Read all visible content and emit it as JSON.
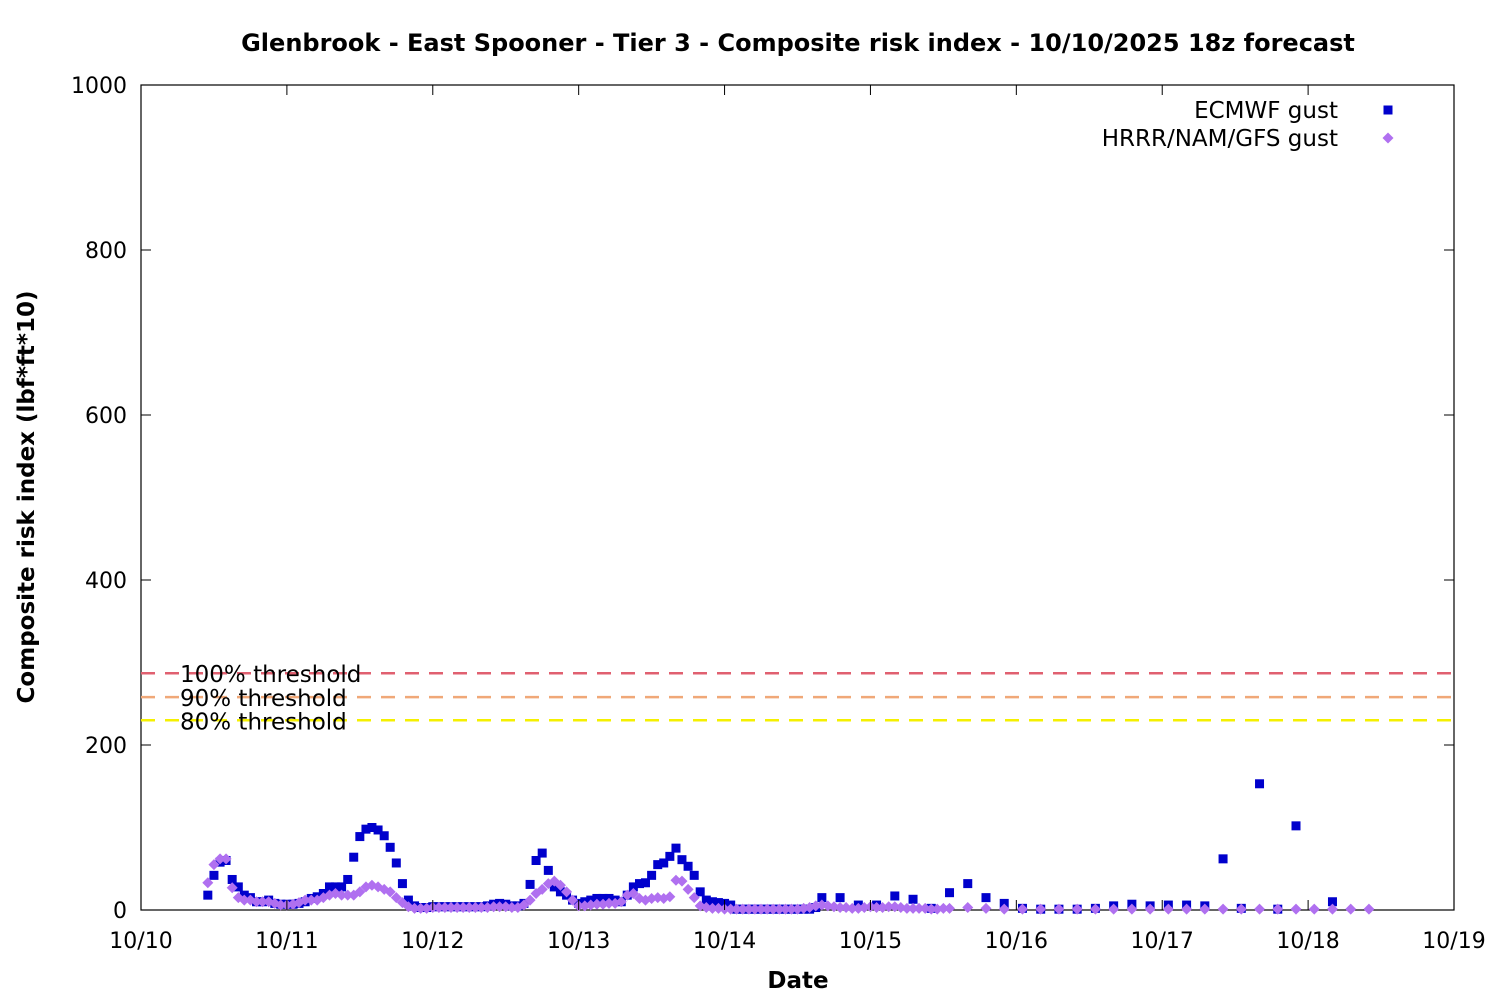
{
  "chart_data": {
    "type": "scatter",
    "title": "Glenbrook - East Spooner - Tier 3 - Composite risk index - 10/10/2025 18z forecast",
    "xlabel": "Date",
    "ylabel": "Composite risk index (lbf*ft*10)",
    "x_unit": "days",
    "xlim": [
      0,
      9
    ],
    "ylim": [
      0,
      1000
    ],
    "x_ticks": [
      {
        "x": 0,
        "label": "10/10"
      },
      {
        "x": 1,
        "label": "10/11"
      },
      {
        "x": 2,
        "label": "10/12"
      },
      {
        "x": 3,
        "label": "10/13"
      },
      {
        "x": 4,
        "label": "10/14"
      },
      {
        "x": 5,
        "label": "10/15"
      },
      {
        "x": 6,
        "label": "10/16"
      },
      {
        "x": 7,
        "label": "10/17"
      },
      {
        "x": 8,
        "label": "10/18"
      },
      {
        "x": 9,
        "label": "10/19"
      }
    ],
    "y_ticks": [
      {
        "y": 0,
        "label": "0"
      },
      {
        "y": 200,
        "label": "200"
      },
      {
        "y": 400,
        "label": "400"
      },
      {
        "y": 600,
        "label": "600"
      },
      {
        "y": 800,
        "label": "800"
      },
      {
        "y": 1000,
        "label": "1000"
      }
    ],
    "legend_position": "top-right",
    "grid": false,
    "thresholds": [
      {
        "name": "100% threshold",
        "value": 287,
        "color": "#e06070"
      },
      {
        "name": "90% threshold",
        "value": 258,
        "color": "#f0a878"
      },
      {
        "name": "80% threshold",
        "value": 230,
        "color": "#f5f000"
      }
    ],
    "series": [
      {
        "name": "ECMWF gust",
        "color": "#0000cc",
        "marker": "square",
        "points": [
          [
            0.458,
            18
          ],
          [
            0.5,
            42
          ],
          [
            0.542,
            58
          ],
          [
            0.583,
            60
          ],
          [
            0.625,
            37
          ],
          [
            0.667,
            28
          ],
          [
            0.708,
            18
          ],
          [
            0.75,
            15
          ],
          [
            0.792,
            10
          ],
          [
            0.833,
            10
          ],
          [
            0.875,
            12
          ],
          [
            0.917,
            8
          ],
          [
            0.958,
            7
          ],
          [
            1.0,
            7
          ],
          [
            1.042,
            7
          ],
          [
            1.083,
            8
          ],
          [
            1.125,
            10
          ],
          [
            1.167,
            14
          ],
          [
            1.208,
            16
          ],
          [
            1.25,
            20
          ],
          [
            1.292,
            28
          ],
          [
            1.333,
            28
          ],
          [
            1.375,
            28
          ],
          [
            1.417,
            37
          ],
          [
            1.458,
            64
          ],
          [
            1.5,
            89
          ],
          [
            1.542,
            98
          ],
          [
            1.583,
            100
          ],
          [
            1.625,
            97
          ],
          [
            1.667,
            90
          ],
          [
            1.708,
            76
          ],
          [
            1.75,
            57
          ],
          [
            1.792,
            32
          ],
          [
            1.833,
            12
          ],
          [
            1.875,
            5
          ],
          [
            1.917,
            3
          ],
          [
            1.958,
            3
          ],
          [
            2.0,
            4
          ],
          [
            2.042,
            4
          ],
          [
            2.083,
            4
          ],
          [
            2.125,
            4
          ],
          [
            2.167,
            4
          ],
          [
            2.208,
            4
          ],
          [
            2.25,
            4
          ],
          [
            2.292,
            4
          ],
          [
            2.333,
            4
          ],
          [
            2.375,
            5
          ],
          [
            2.417,
            7
          ],
          [
            2.458,
            8
          ],
          [
            2.5,
            7
          ],
          [
            2.542,
            5
          ],
          [
            2.583,
            5
          ],
          [
            2.625,
            8
          ],
          [
            2.667,
            31
          ],
          [
            2.708,
            60
          ],
          [
            2.75,
            69
          ],
          [
            2.792,
            48
          ],
          [
            2.833,
            28
          ],
          [
            2.875,
            22
          ],
          [
            2.917,
            18
          ],
          [
            2.958,
            12
          ],
          [
            3.0,
            8
          ],
          [
            3.042,
            10
          ],
          [
            3.083,
            12
          ],
          [
            3.125,
            14
          ],
          [
            3.167,
            14
          ],
          [
            3.208,
            14
          ],
          [
            3.25,
            12
          ],
          [
            3.292,
            10
          ],
          [
            3.333,
            18
          ],
          [
            3.375,
            28
          ],
          [
            3.417,
            32
          ],
          [
            3.458,
            33
          ],
          [
            3.5,
            42
          ],
          [
            3.542,
            55
          ],
          [
            3.583,
            57
          ],
          [
            3.625,
            65
          ],
          [
            3.667,
            75
          ],
          [
            3.708,
            61
          ],
          [
            3.75,
            53
          ],
          [
            3.792,
            42
          ],
          [
            3.833,
            22
          ],
          [
            3.875,
            12
          ],
          [
            3.917,
            10
          ],
          [
            3.958,
            9
          ],
          [
            4.0,
            8
          ],
          [
            4.042,
            6
          ],
          [
            4.083,
            1
          ],
          [
            4.125,
            1
          ],
          [
            4.167,
            1
          ],
          [
            4.208,
            1
          ],
          [
            4.25,
            1
          ],
          [
            4.292,
            1
          ],
          [
            4.333,
            1
          ],
          [
            4.375,
            1
          ],
          [
            4.417,
            1
          ],
          [
            4.458,
            1
          ],
          [
            4.5,
            1
          ],
          [
            4.542,
            1
          ],
          [
            4.583,
            1
          ],
          [
            4.625,
            3
          ],
          [
            4.667,
            15
          ],
          [
            4.792,
            15
          ],
          [
            4.917,
            6
          ],
          [
            5.042,
            6
          ],
          [
            5.167,
            17
          ],
          [
            5.292,
            13
          ],
          [
            5.417,
            2
          ],
          [
            5.542,
            21
          ],
          [
            5.667,
            32
          ],
          [
            5.792,
            15
          ],
          [
            5.917,
            8
          ],
          [
            6.042,
            2
          ],
          [
            6.167,
            1
          ],
          [
            6.292,
            1
          ],
          [
            6.417,
            1
          ],
          [
            6.542,
            2
          ],
          [
            6.667,
            5
          ],
          [
            6.792,
            7
          ],
          [
            6.917,
            5
          ],
          [
            7.042,
            6
          ],
          [
            7.167,
            6
          ],
          [
            7.292,
            5
          ],
          [
            7.417,
            62
          ],
          [
            7.542,
            2
          ],
          [
            7.667,
            153
          ],
          [
            7.792,
            1
          ],
          [
            7.917,
            102
          ],
          [
            8.167,
            10
          ]
        ]
      },
      {
        "name": "HRRR/NAM/GFS gust",
        "color": "#b070f0",
        "marker": "diamond",
        "points": [
          [
            0.458,
            33
          ],
          [
            0.5,
            55
          ],
          [
            0.542,
            62
          ],
          [
            0.583,
            62
          ],
          [
            0.625,
            27
          ],
          [
            0.667,
            15
          ],
          [
            0.708,
            12
          ],
          [
            0.75,
            12
          ],
          [
            0.792,
            10
          ],
          [
            0.833,
            10
          ],
          [
            0.875,
            10
          ],
          [
            0.917,
            8
          ],
          [
            0.958,
            6
          ],
          [
            1.0,
            6
          ],
          [
            1.042,
            7
          ],
          [
            1.083,
            9
          ],
          [
            1.125,
            12
          ],
          [
            1.167,
            12
          ],
          [
            1.208,
            12
          ],
          [
            1.25,
            15
          ],
          [
            1.292,
            18
          ],
          [
            1.333,
            20
          ],
          [
            1.375,
            18
          ],
          [
            1.417,
            18
          ],
          [
            1.458,
            18
          ],
          [
            1.5,
            22
          ],
          [
            1.542,
            28
          ],
          [
            1.583,
            30
          ],
          [
            1.625,
            28
          ],
          [
            1.667,
            25
          ],
          [
            1.708,
            22
          ],
          [
            1.75,
            15
          ],
          [
            1.792,
            9
          ],
          [
            1.833,
            4
          ],
          [
            1.875,
            2
          ],
          [
            1.917,
            2
          ],
          [
            1.958,
            2
          ],
          [
            2.0,
            3
          ],
          [
            2.042,
            3
          ],
          [
            2.083,
            3
          ],
          [
            2.125,
            3
          ],
          [
            2.167,
            3
          ],
          [
            2.208,
            3
          ],
          [
            2.25,
            3
          ],
          [
            2.292,
            3
          ],
          [
            2.333,
            3
          ],
          [
            2.375,
            3
          ],
          [
            2.417,
            4
          ],
          [
            2.458,
            4
          ],
          [
            2.5,
            4
          ],
          [
            2.542,
            3
          ],
          [
            2.583,
            3
          ],
          [
            2.625,
            6
          ],
          [
            2.667,
            12
          ],
          [
            2.708,
            20
          ],
          [
            2.75,
            25
          ],
          [
            2.792,
            32
          ],
          [
            2.833,
            35
          ],
          [
            2.875,
            30
          ],
          [
            2.917,
            22
          ],
          [
            2.958,
            12
          ],
          [
            3.0,
            5
          ],
          [
            3.042,
            5
          ],
          [
            3.083,
            6
          ],
          [
            3.125,
            7
          ],
          [
            3.167,
            7
          ],
          [
            3.208,
            8
          ],
          [
            3.25,
            8
          ],
          [
            3.292,
            10
          ],
          [
            3.333,
            18
          ],
          [
            3.375,
            20
          ],
          [
            3.417,
            14
          ],
          [
            3.458,
            12
          ],
          [
            3.5,
            14
          ],
          [
            3.542,
            15
          ],
          [
            3.583,
            14
          ],
          [
            3.625,
            16
          ],
          [
            3.667,
            36
          ],
          [
            3.708,
            35
          ],
          [
            3.75,
            25
          ],
          [
            3.792,
            15
          ],
          [
            3.833,
            5
          ],
          [
            3.875,
            3
          ],
          [
            3.917,
            2
          ],
          [
            3.958,
            2
          ],
          [
            4.0,
            1
          ],
          [
            4.042,
            1
          ],
          [
            4.083,
            1
          ],
          [
            4.125,
            1
          ],
          [
            4.167,
            1
          ],
          [
            4.208,
            1
          ],
          [
            4.25,
            1
          ],
          [
            4.292,
            1
          ],
          [
            4.333,
            1
          ],
          [
            4.375,
            1
          ],
          [
            4.417,
            1
          ],
          [
            4.458,
            1
          ],
          [
            4.5,
            1
          ],
          [
            4.542,
            2
          ],
          [
            4.583,
            3
          ],
          [
            4.625,
            5
          ],
          [
            4.667,
            6
          ],
          [
            4.708,
            5
          ],
          [
            4.75,
            4
          ],
          [
            4.792,
            3
          ],
          [
            4.833,
            3
          ],
          [
            4.875,
            2
          ],
          [
            4.917,
            2
          ],
          [
            4.958,
            3
          ],
          [
            5.0,
            4
          ],
          [
            5.042,
            3
          ],
          [
            5.083,
            3
          ],
          [
            5.125,
            4
          ],
          [
            5.167,
            4
          ],
          [
            5.208,
            3
          ],
          [
            5.25,
            2
          ],
          [
            5.292,
            2
          ],
          [
            5.333,
            2
          ],
          [
            5.375,
            2
          ],
          [
            5.417,
            1
          ],
          [
            5.458,
            1
          ],
          [
            5.5,
            2
          ],
          [
            5.542,
            2
          ],
          [
            5.667,
            3
          ],
          [
            5.792,
            2
          ],
          [
            5.917,
            1
          ],
          [
            6.042,
            1
          ],
          [
            6.167,
            1
          ],
          [
            6.292,
            1
          ],
          [
            6.417,
            1
          ],
          [
            6.542,
            1
          ],
          [
            6.667,
            1
          ],
          [
            6.792,
            1
          ],
          [
            6.917,
            1
          ],
          [
            7.042,
            1
          ],
          [
            7.167,
            1
          ],
          [
            7.292,
            1
          ],
          [
            7.417,
            1
          ],
          [
            7.542,
            1
          ],
          [
            7.667,
            1
          ],
          [
            7.792,
            1
          ],
          [
            7.917,
            1
          ],
          [
            8.042,
            1
          ],
          [
            8.167,
            1
          ],
          [
            8.292,
            1
          ],
          [
            8.417,
            1
          ]
        ]
      }
    ]
  }
}
